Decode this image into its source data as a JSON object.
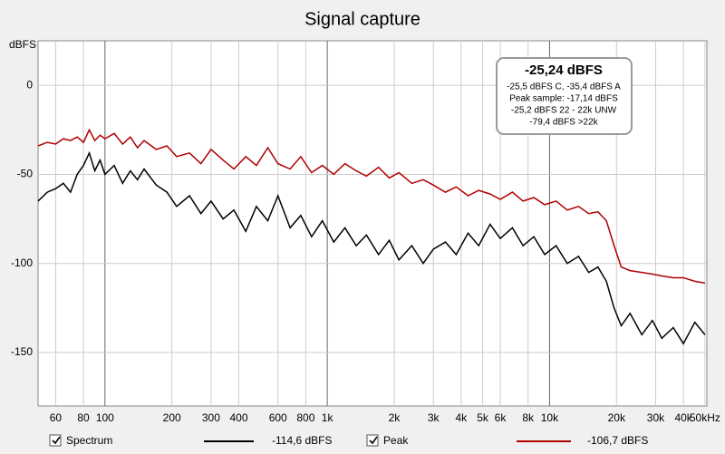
{
  "chart_data": {
    "type": "line",
    "title": "Signal capture",
    "y_label": "dBFS",
    "x_scale": "log",
    "grid": true,
    "xlim": [
      50,
      51000
    ],
    "ylim": [
      -180,
      25
    ],
    "xticks": [
      60,
      80,
      100,
      200,
      300,
      400,
      600,
      800,
      {
        "value": 1000,
        "label": "1k"
      },
      {
        "value": 2000,
        "label": "2k"
      },
      {
        "value": 3000,
        "label": "3k"
      },
      {
        "value": 4000,
        "label": "4k"
      },
      {
        "value": 5000,
        "label": "5k"
      },
      {
        "value": 6000,
        "label": "6k"
      },
      {
        "value": 8000,
        "label": "8k"
      },
      {
        "value": 10000,
        "label": "10k"
      },
      {
        "value": 20000,
        "label": "20k"
      },
      {
        "value": 30000,
        "label": "30k"
      },
      {
        "value": 40000,
        "label": "40k"
      },
      {
        "value": 50000,
        "label": "50kHz"
      }
    ],
    "yticks": [
      0,
      -50,
      -100,
      -150
    ],
    "x": [
      50,
      55,
      60,
      65,
      70,
      75,
      80,
      85,
      90,
      95,
      100,
      110,
      120,
      130,
      140,
      150,
      170,
      190,
      210,
      240,
      270,
      300,
      340,
      380,
      430,
      480,
      540,
      600,
      680,
      760,
      850,
      950,
      1070,
      1200,
      1350,
      1500,
      1700,
      1900,
      2100,
      2400,
      2700,
      3000,
      3400,
      3800,
      4300,
      4800,
      5400,
      6000,
      6800,
      7600,
      8500,
      9500,
      10700,
      12000,
      13500,
      15000,
      16500,
      18000,
      19500,
      21000,
      23000,
      26000,
      29000,
      32000,
      36000,
      40000,
      45000,
      50000
    ],
    "series": [
      {
        "name": "Spectrum",
        "color": "#000000",
        "readout": "-114,6 dBFS",
        "values": [
          -65,
          -60,
          -58,
          -55,
          -60,
          -50,
          -45,
          -38,
          -48,
          -42,
          -50,
          -45,
          -55,
          -48,
          -53,
          -47,
          -56,
          -60,
          -68,
          -62,
          -72,
          -65,
          -75,
          -70,
          -82,
          -68,
          -76,
          -62,
          -80,
          -73,
          -85,
          -76,
          -88,
          -80,
          -90,
          -84,
          -95,
          -87,
          -98,
          -90,
          -100,
          -92,
          -88,
          -95,
          -83,
          -90,
          -78,
          -86,
          -80,
          -90,
          -85,
          -95,
          -90,
          -100,
          -96,
          -105,
          -102,
          -110,
          -125,
          -135,
          -128,
          -140,
          -132,
          -142,
          -136,
          -145,
          -133,
          -140
        ]
      },
      {
        "name": "Peak",
        "color": "#b00000",
        "readout": "-106,7 dBFS",
        "values": [
          -34,
          -32,
          -33,
          -30,
          -31,
          -29,
          -32,
          -25,
          -31,
          -28,
          -30,
          -27,
          -33,
          -29,
          -35,
          -31,
          -36,
          -34,
          -40,
          -38,
          -44,
          -36,
          -42,
          -47,
          -40,
          -45,
          -35,
          -44,
          -47,
          -40,
          -49,
          -45,
          -50,
          -44,
          -48,
          -51,
          -46,
          -52,
          -49,
          -55,
          -53,
          -56,
          -60,
          -57,
          -62,
          -59,
          -61,
          -64,
          -60,
          -65,
          -63,
          -67,
          -65,
          -70,
          -68,
          -72,
          -71,
          -76,
          -90,
          -102,
          -104,
          -105,
          -106,
          -107,
          -108,
          -108,
          -110,
          -111
        ]
      }
    ],
    "info": {
      "title": "-25,24 dBFS",
      "lines": [
        "-25,5 dBFS C, -35,4 dBFS A",
        "Peak sample: -17,14 dBFS",
        "-25,2 dBFS 22 - 22k UNW",
        "-79,4 dBFS >22k"
      ]
    }
  }
}
